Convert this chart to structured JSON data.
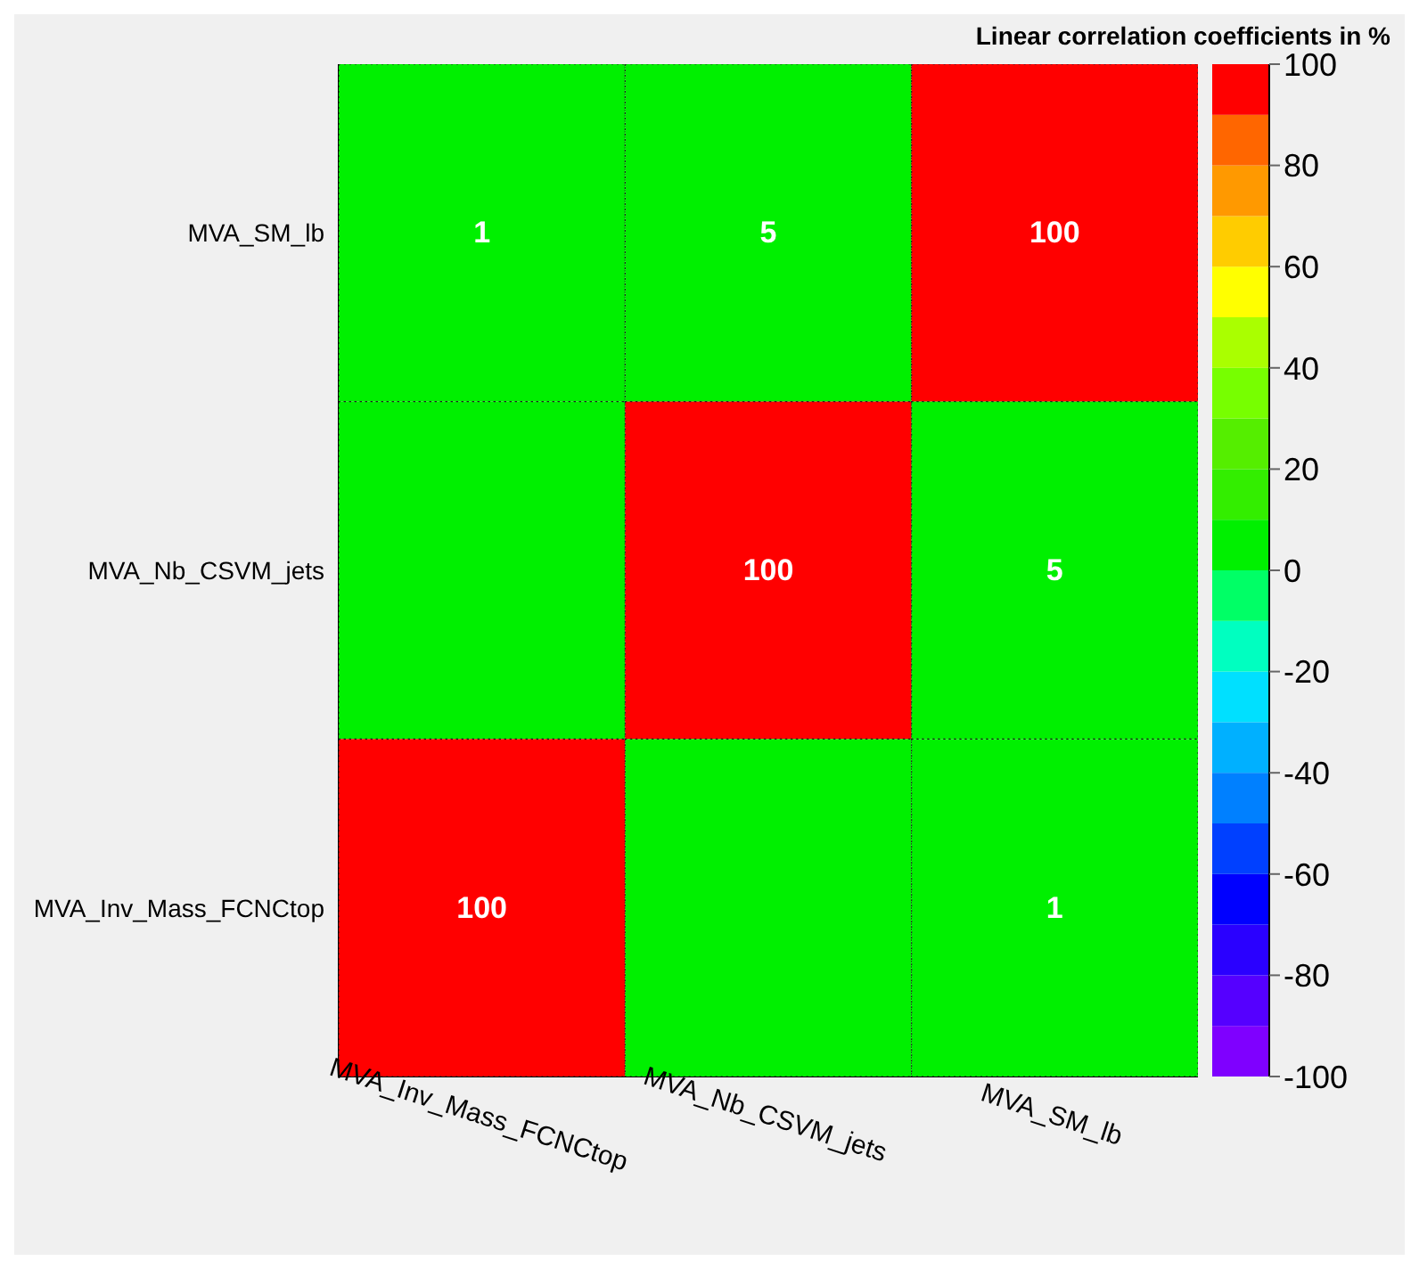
{
  "chart_data": {
    "type": "heatmap",
    "title": "Linear correlation coefficients in %",
    "categories": [
      "MVA_Inv_Mass_FCNCtop",
      "MVA_Nb_CSVM_jets",
      "MVA_SM_lb"
    ],
    "y_categories": [
      "MVA_SM_lb",
      "MVA_Nb_CSVM_jets",
      "MVA_Inv_Mass_FCNCtop"
    ],
    "cells": [
      [
        1,
        5,
        100
      ],
      [
        0,
        100,
        5
      ],
      [
        100,
        0,
        1
      ]
    ],
    "cell_labels": [
      [
        "1",
        "5",
        "100"
      ],
      [
        null,
        "100",
        "5"
      ],
      [
        "100",
        null,
        "1"
      ]
    ],
    "clim": [
      -100,
      100
    ],
    "cticks": [
      -100,
      -80,
      -60,
      -40,
      -20,
      0,
      20,
      40,
      60,
      80,
      100
    ]
  }
}
